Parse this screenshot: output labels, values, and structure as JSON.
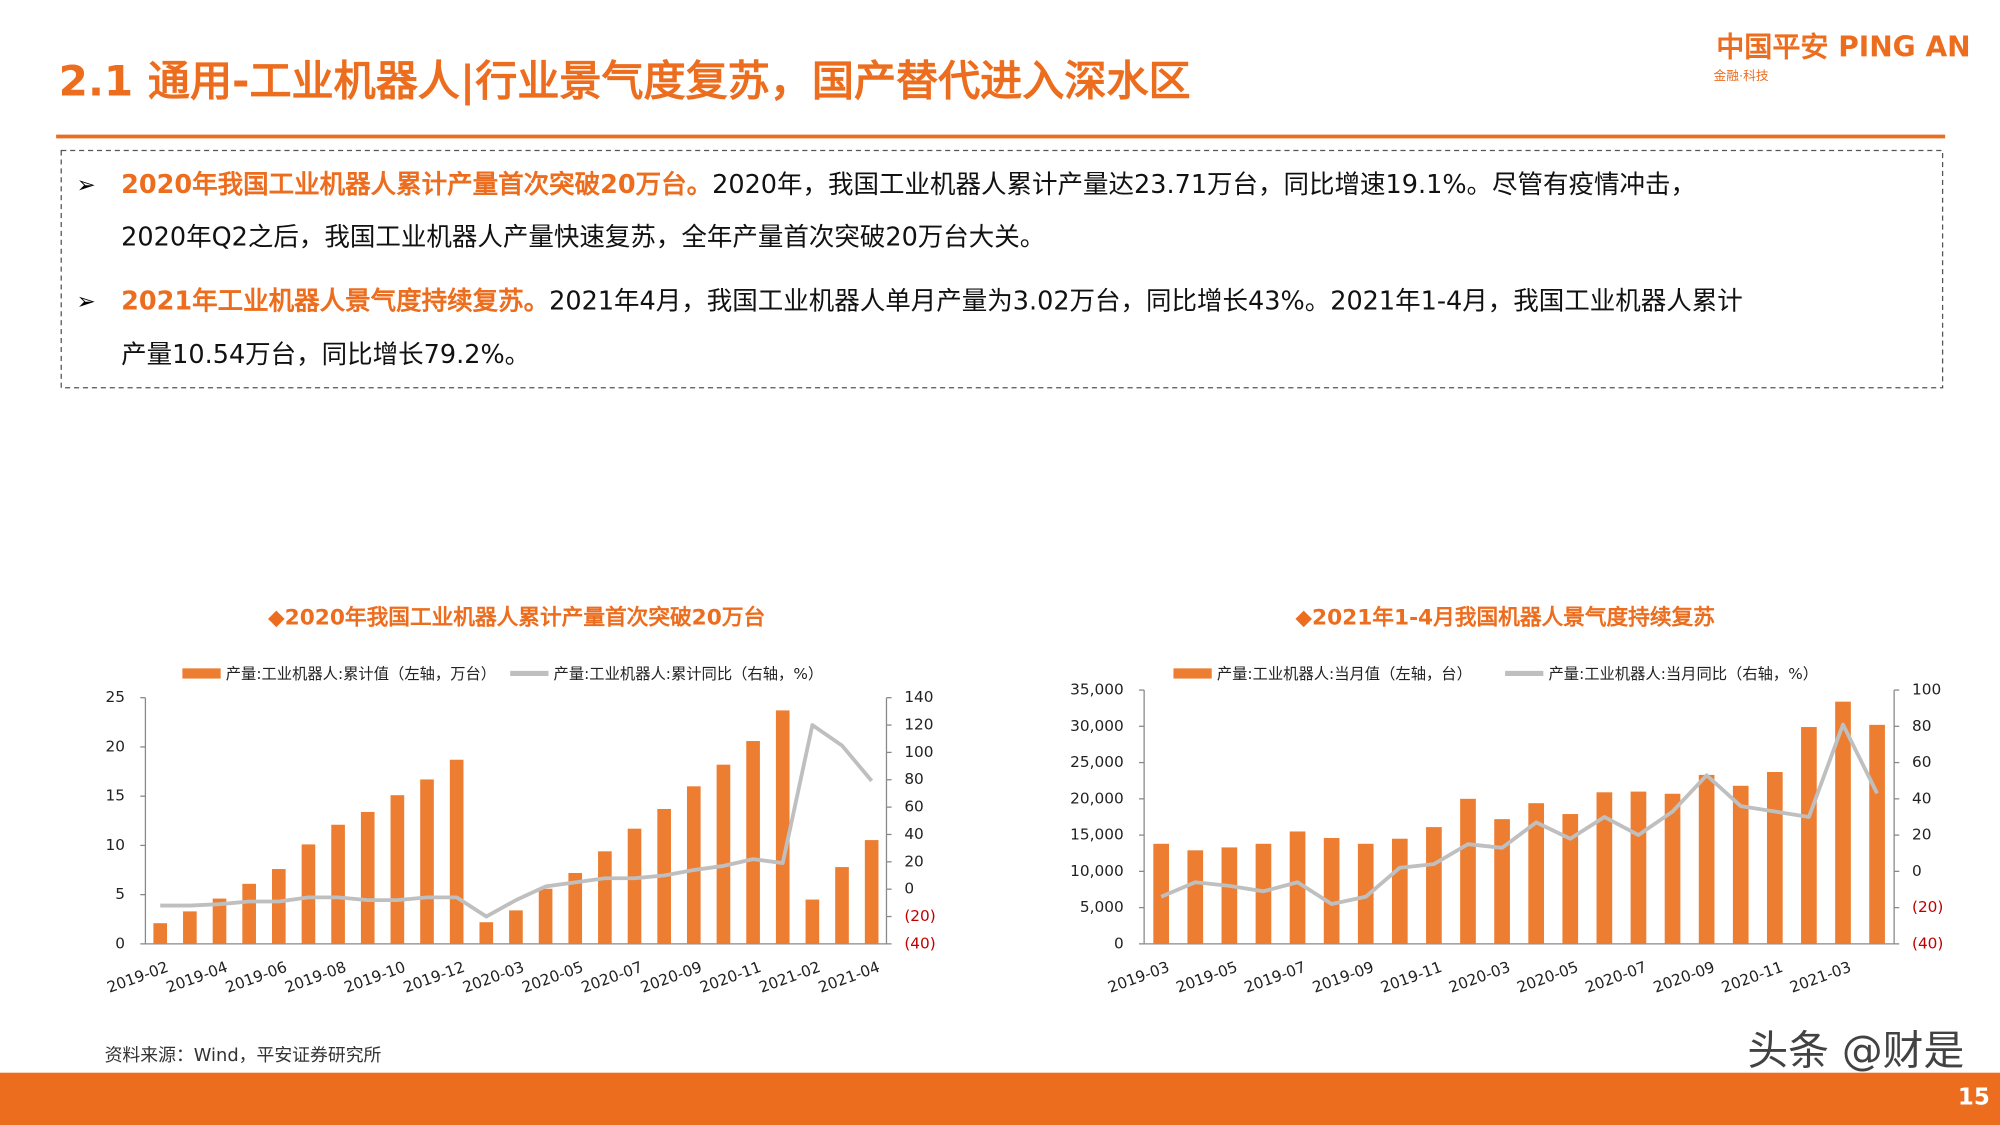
{
  "header": {
    "title": "2.1 通用-工业机器人|行业景气度复苏，国产替代进入深水区",
    "logo": "中国平安 PING AN",
    "logo_sub": "金融·科技"
  },
  "bullets": [
    {
      "lead": "2020年我国工业机器人累计产量首次突破20万台。",
      "lines": [
        "2020年，我国工业机器人累计产量达23.71万台，同比增速19.1%。尽管有疫情冲击，",
        "2020年Q2之后，我国工业机器人产量快速复苏，全年产量首次突破20万台大关。"
      ]
    },
    {
      "lead": "2021年工业机器人景气度持续复苏。",
      "lines": [
        "2021年4月，我国工业机器人单月产量为3.02万台，同比增长43%。2021年1-4月，我国工业机器人累计",
        "产量10.54万台，同比增长79.2%。"
      ]
    }
  ],
  "chart_data": [
    {
      "type": "combo",
      "title": "◆2020年我国工业机器人累计产量首次突破20万台",
      "categories": [
        "2019-02",
        null,
        "2019-04",
        null,
        "2019-06",
        null,
        "2019-08",
        null,
        "2019-10",
        null,
        "2019-12",
        null,
        "2020-03",
        null,
        "2020-05",
        null,
        "2020-07",
        null,
        "2020-09",
        null,
        "2020-11",
        null,
        "2021-02",
        null,
        "2021-04"
      ],
      "series": [
        {
          "name": "产量:工业机器人:累计值（左轴，万台）",
          "color": "#ed7d31",
          "kind": "bar",
          "values": [
            2.1,
            3.3,
            4.6,
            6.1,
            7.6,
            10.1,
            12.1,
            13.4,
            15.1,
            16.7,
            18.7,
            2.2,
            3.4,
            5.6,
            7.2,
            9.4,
            11.7,
            13.7,
            16.0,
            18.2,
            20.6,
            23.71,
            4.5,
            7.8,
            10.54
          ]
        },
        {
          "name": "产量:工业机器人:累计同比（右轴，%）",
          "color": "#bfbfbf",
          "kind": "line",
          "axis": "y2",
          "values": [
            -12,
            -12,
            -11,
            -9,
            -9,
            -6,
            -6,
            -8,
            -8,
            -6,
            -6,
            -20,
            -8,
            2,
            5,
            8,
            8,
            10,
            14,
            17,
            22,
            19.1,
            120,
            105,
            79.2
          ]
        }
      ],
      "ylim": [
        0,
        25
      ],
      "yticks": [
        0,
        5,
        10,
        15,
        20,
        25
      ],
      "y2lim": [
        -40,
        140
      ],
      "y2ticks": [
        {
          "value": -40,
          "label": "(40)"
        },
        {
          "value": -20,
          "label": "(20)"
        },
        0,
        20,
        40,
        60,
        80,
        100,
        120,
        140
      ]
    },
    {
      "type": "combo",
      "title": "◆2021年1-4月我国机器人景气度持续复苏",
      "categories": [
        "2019-03",
        null,
        "2019-05",
        null,
        "2019-07",
        null,
        "2019-09",
        null,
        "2019-11",
        null,
        "2020-03",
        null,
        "2020-05",
        null,
        "2020-07",
        null,
        "2020-09",
        null,
        "2020-11",
        null,
        "2021-03",
        null
      ],
      "series": [
        {
          "name": "产量:工业机器人:当月值（左轴，台）",
          "color": "#ed7d31",
          "kind": "bar",
          "values": [
            13800,
            12900,
            13300,
            13800,
            15500,
            14600,
            13800,
            14500,
            16100,
            20000,
            17200,
            19400,
            17900,
            20900,
            21000,
            20700,
            23300,
            21800,
            23700,
            29900,
            33400,
            30200
          ]
        },
        {
          "name": "产量:工业机器人:当月同比（右轴，%）",
          "color": "#bfbfbf",
          "kind": "line",
          "axis": "y2",
          "values": [
            -14,
            -6,
            -8,
            -11,
            -6,
            -18,
            -14,
            2,
            4,
            15,
            13,
            27,
            18,
            30,
            20,
            33,
            53,
            36,
            33,
            30,
            81,
            43
          ]
        }
      ],
      "ylim": [
        0,
        35000
      ],
      "yticks": [
        0,
        {
          "value": 5000,
          "label": "5,000"
        },
        {
          "value": 10000,
          "label": "10,000"
        },
        {
          "value": 15000,
          "label": "15,000"
        },
        {
          "value": 20000,
          "label": "20,000"
        },
        {
          "value": 25000,
          "label": "25,000"
        },
        {
          "value": 30000,
          "label": "30,000"
        },
        {
          "value": 35000,
          "label": "35,000"
        }
      ],
      "y2lim": [
        -40,
        100
      ],
      "y2ticks": [
        {
          "value": -40,
          "label": "(40)"
        },
        {
          "value": -20,
          "label": "(20)"
        },
        0,
        20,
        40,
        60,
        80,
        100
      ]
    }
  ],
  "source": "资料来源：Wind，平安证券研究所",
  "watermark": "头条 @财是",
  "page_number": "15"
}
